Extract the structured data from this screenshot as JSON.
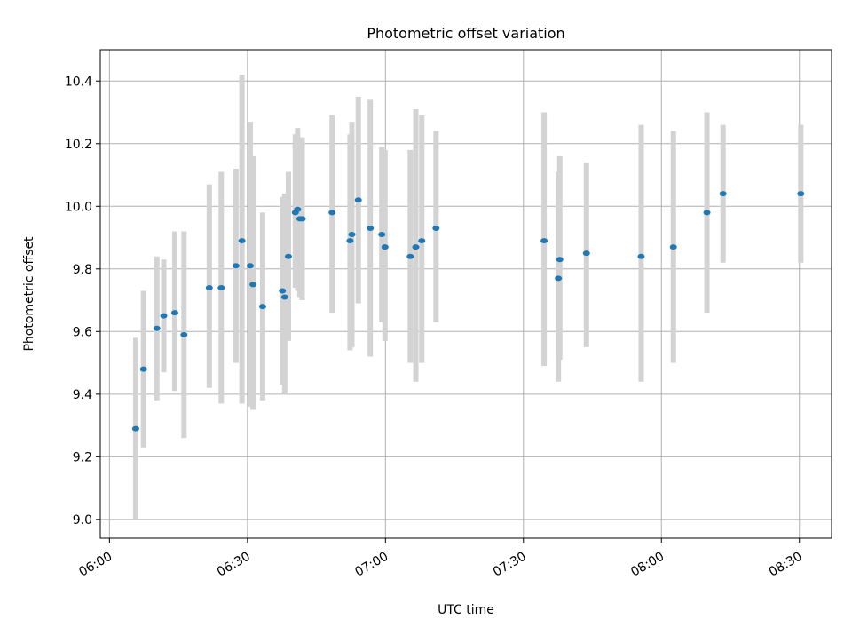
{
  "chart_data": {
    "type": "scatter",
    "title": "Photometric offset variation",
    "xlabel": "UTC time",
    "ylabel": "Photometric offset",
    "x_type": "time",
    "xlim": [
      "05:58",
      "08:37"
    ],
    "ylim": [
      8.94,
      10.5
    ],
    "x_ticks": [
      "06:00",
      "06:30",
      "07:00",
      "07:30",
      "08:00",
      "08:30"
    ],
    "y_ticks": [
      9.0,
      9.2,
      9.4,
      9.6,
      9.8,
      10.0,
      10.2,
      10.4
    ],
    "y_tick_labels": [
      "9.0",
      "9.2",
      "9.4",
      "9.6",
      "9.8",
      "10.0",
      "10.2",
      "10.4"
    ],
    "grid": true,
    "colors": {
      "point": "#1f77b4",
      "errorbar": "#d3d3d3",
      "grid": "#b0b0b0"
    },
    "points": [
      {
        "x": "06:05:42",
        "y": 9.29,
        "err_low": 9.0,
        "err_high": 9.58
      },
      {
        "x": "06:07:24",
        "y": 9.48,
        "err_low": 9.23,
        "err_high": 9.73
      },
      {
        "x": "06:10:18",
        "y": 9.61,
        "err_low": 9.38,
        "err_high": 9.84
      },
      {
        "x": "06:11:48",
        "y": 9.65,
        "err_low": 9.47,
        "err_high": 9.83
      },
      {
        "x": "06:14:12",
        "y": 9.66,
        "err_low": 9.41,
        "err_high": 9.92
      },
      {
        "x": "06:16:12",
        "y": 9.59,
        "err_low": 9.26,
        "err_high": 9.92
      },
      {
        "x": "06:21:42",
        "y": 9.74,
        "err_low": 9.42,
        "err_high": 10.07
      },
      {
        "x": "06:24:18",
        "y": 9.74,
        "err_low": 9.37,
        "err_high": 10.11
      },
      {
        "x": "06:27:30",
        "y": 9.81,
        "err_low": 9.5,
        "err_high": 10.12
      },
      {
        "x": "06:28:48",
        "y": 9.89,
        "err_low": 9.37,
        "err_high": 10.42
      },
      {
        "x": "06:30:36",
        "y": 9.81,
        "err_low": 9.36,
        "err_high": 10.27
      },
      {
        "x": "06:31:12",
        "y": 9.75,
        "err_low": 9.35,
        "err_high": 10.16
      },
      {
        "x": "06:33:18",
        "y": 9.68,
        "err_low": 9.38,
        "err_high": 9.98
      },
      {
        "x": "06:37:36",
        "y": 9.73,
        "err_low": 9.43,
        "err_high": 10.03
      },
      {
        "x": "06:38:06",
        "y": 9.71,
        "err_low": 9.4,
        "err_high": 10.04
      },
      {
        "x": "06:38:54",
        "y": 9.84,
        "err_low": 9.57,
        "err_high": 10.11
      },
      {
        "x": "06:40:24",
        "y": 9.98,
        "err_low": 9.74,
        "err_high": 10.23
      },
      {
        "x": "06:40:54",
        "y": 9.99,
        "err_low": 9.73,
        "err_high": 10.25
      },
      {
        "x": "06:41:24",
        "y": 9.96,
        "err_low": 9.71,
        "err_high": 10.22
      },
      {
        "x": "06:41:54",
        "y": 9.96,
        "err_low": 9.7,
        "err_high": 10.22
      },
      {
        "x": "06:48:24",
        "y": 9.98,
        "err_low": 9.66,
        "err_high": 10.29
      },
      {
        "x": "06:52:18",
        "y": 9.89,
        "err_low": 9.54,
        "err_high": 10.23
      },
      {
        "x": "06:52:42",
        "y": 9.91,
        "err_low": 9.55,
        "err_high": 10.27
      },
      {
        "x": "06:54:06",
        "y": 10.02,
        "err_low": 9.69,
        "err_high": 10.35
      },
      {
        "x": "06:56:42",
        "y": 9.93,
        "err_low": 9.52,
        "err_high": 10.34
      },
      {
        "x": "06:59:12",
        "y": 9.91,
        "err_low": 9.63,
        "err_high": 10.19
      },
      {
        "x": "06:59:54",
        "y": 9.87,
        "err_low": 9.57,
        "err_high": 10.18
      },
      {
        "x": "07:05:24",
        "y": 9.84,
        "err_low": 9.5,
        "err_high": 10.18
      },
      {
        "x": "07:06:36",
        "y": 9.87,
        "err_low": 9.44,
        "err_high": 10.31
      },
      {
        "x": "07:07:54",
        "y": 9.89,
        "err_low": 9.5,
        "err_high": 10.29
      },
      {
        "x": "07:11:00",
        "y": 9.93,
        "err_low": 9.63,
        "err_high": 10.24
      },
      {
        "x": "07:34:30",
        "y": 9.89,
        "err_low": 9.49,
        "err_high": 10.3
      },
      {
        "x": "07:37:36",
        "y": 9.77,
        "err_low": 9.44,
        "err_high": 10.11
      },
      {
        "x": "07:37:54",
        "y": 9.83,
        "err_low": 9.51,
        "err_high": 10.16
      },
      {
        "x": "07:43:42",
        "y": 9.85,
        "err_low": 9.55,
        "err_high": 10.14
      },
      {
        "x": "07:55:36",
        "y": 9.84,
        "err_low": 9.44,
        "err_high": 10.26
      },
      {
        "x": "08:02:36",
        "y": 9.87,
        "err_low": 9.5,
        "err_high": 10.24
      },
      {
        "x": "08:09:54",
        "y": 9.98,
        "err_low": 9.66,
        "err_high": 10.3
      },
      {
        "x": "08:13:24",
        "y": 10.04,
        "err_low": 9.82,
        "err_high": 10.26
      },
      {
        "x": "08:30:18",
        "y": 10.04,
        "err_low": 9.82,
        "err_high": 10.26
      }
    ]
  }
}
